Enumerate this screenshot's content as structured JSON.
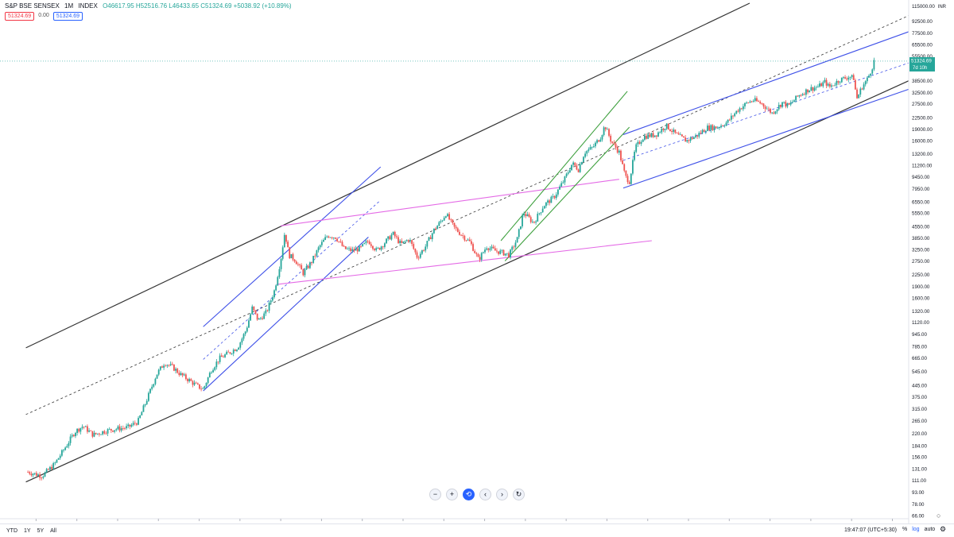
{
  "header": {
    "symbol": "S&P BSE SENSEX",
    "interval": "1M",
    "exchange": "INDEX",
    "ohlc": "O46617.95 H52516.76 L46433.65 C51324.69 +5038.92 (+10.89%)",
    "badge_sell": "51324.69",
    "badge_spread": "0.00",
    "badge_buy": "51324.69"
  },
  "price_axis": {
    "currency": "INR",
    "last_price": "51324.69",
    "countdown": "7d 10h",
    "top_label": "115000.00"
  },
  "chart_data": {
    "type": "candlestick",
    "y_scale": "log",
    "x_ticks": [
      "1980",
      "1982",
      "1984",
      "1986",
      "1988",
      "1990",
      "1992",
      "1994",
      "1996",
      "1998",
      "2000",
      "2002",
      "2004",
      "2006",
      "2008",
      "2010",
      "2012",
      "2014",
      "2016",
      "2018",
      "2020",
      "2022"
    ],
    "y_ticks": [
      "115000.00",
      "92500.00",
      "77500.00",
      "65500.00",
      "55500.00",
      "38500.00",
      "32500.00",
      "27500.00",
      "22500.00",
      "19000.00",
      "16000.00",
      "13200.00",
      "11200.00",
      "9450.00",
      "7950.00",
      "6550.00",
      "5550.00",
      "4550.00",
      "3850.00",
      "3250.00",
      "2750.00",
      "2250.00",
      "1900.00",
      "1600.00",
      "1320.00",
      "1120.00",
      "945.00",
      "785.00",
      "665.00",
      "545.00",
      "445.00",
      "375.00",
      "315.00",
      "265.00",
      "220.00",
      "184.00",
      "156.00",
      "131.00",
      "111.00",
      "93.00",
      "78.00",
      "66.00"
    ],
    "x_range": [
      1979.4,
      2022.8
    ],
    "y_range": [
      63,
      120000
    ],
    "price_path": [
      [
        1979.6,
        125
      ],
      [
        1980.3,
        118
      ],
      [
        1980.9,
        140
      ],
      [
        1981.5,
        185
      ],
      [
        1981.9,
        225
      ],
      [
        1982.3,
        245
      ],
      [
        1982.8,
        215
      ],
      [
        1983.4,
        228
      ],
      [
        1983.9,
        235
      ],
      [
        1984.5,
        240
      ],
      [
        1985.0,
        262
      ],
      [
        1985.5,
        380
      ],
      [
        1985.9,
        520
      ],
      [
        1986.3,
        620
      ],
      [
        1986.7,
        580
      ],
      [
        1987.1,
        520
      ],
      [
        1987.5,
        480
      ],
      [
        1987.9,
        440
      ],
      [
        1988.2,
        420
      ],
      [
        1988.6,
        560
      ],
      [
        1989.0,
        660
      ],
      [
        1989.5,
        720
      ],
      [
        1989.9,
        780
      ],
      [
        1990.3,
        1000
      ],
      [
        1990.6,
        1380
      ],
      [
        1990.9,
        1150
      ],
      [
        1991.3,
        1300
      ],
      [
        1991.7,
        1800
      ],
      [
        1992.0,
        2800
      ],
      [
        1992.2,
        4200
      ],
      [
        1992.4,
        3000
      ],
      [
        1992.7,
        2800
      ],
      [
        1993.1,
        2300
      ],
      [
        1993.5,
        2700
      ],
      [
        1993.9,
        3400
      ],
      [
        1994.3,
        4000
      ],
      [
        1994.7,
        3900
      ],
      [
        1995.1,
        3300
      ],
      [
        1995.5,
        3200
      ],
      [
        1995.9,
        3300
      ],
      [
        1996.3,
        3700
      ],
      [
        1996.7,
        3200
      ],
      [
        1997.1,
        3600
      ],
      [
        1997.5,
        4100
      ],
      [
        1997.9,
        3500
      ],
      [
        1998.3,
        3800
      ],
      [
        1998.7,
        2900
      ],
      [
        1999.1,
        3400
      ],
      [
        1999.5,
        4300
      ],
      [
        1999.9,
        5000
      ],
      [
        2000.1,
        5500
      ],
      [
        2000.5,
        4500
      ],
      [
        2000.9,
        4000
      ],
      [
        2001.3,
        3600
      ],
      [
        2001.7,
        2800
      ],
      [
        2002.1,
        3400
      ],
      [
        2002.5,
        3200
      ],
      [
        2002.9,
        3100
      ],
      [
        2003.2,
        3000
      ],
      [
        2003.6,
        3800
      ],
      [
        2003.9,
        5600
      ],
      [
        2004.4,
        4800
      ],
      [
        2004.9,
        6200
      ],
      [
        2005.4,
        7000
      ],
      [
        2005.9,
        9000
      ],
      [
        2006.3,
        11500
      ],
      [
        2006.6,
        10500
      ],
      [
        2006.9,
        13500
      ],
      [
        2007.3,
        14500
      ],
      [
        2007.7,
        17000
      ],
      [
        2007.9,
        20000
      ],
      [
        2008.2,
        16000
      ],
      [
        2008.6,
        13500
      ],
      [
        2008.9,
        9500
      ],
      [
        2009.1,
        8800
      ],
      [
        2009.4,
        14500
      ],
      [
        2009.8,
        17000
      ],
      [
        2010.4,
        17500
      ],
      [
        2010.9,
        20000
      ],
      [
        2011.4,
        17500
      ],
      [
        2011.9,
        16000
      ],
      [
        2012.4,
        17200
      ],
      [
        2012.9,
        19400
      ],
      [
        2013.4,
        19500
      ],
      [
        2013.9,
        21000
      ],
      [
        2014.4,
        25000
      ],
      [
        2014.9,
        28000
      ],
      [
        2015.2,
        29000
      ],
      [
        2015.6,
        27500
      ],
      [
        2016.1,
        24000
      ],
      [
        2016.6,
        28000
      ],
      [
        2016.9,
        26600
      ],
      [
        2017.4,
        31000
      ],
      [
        2017.9,
        34000
      ],
      [
        2018.4,
        35500
      ],
      [
        2018.7,
        38000
      ],
      [
        2018.9,
        35000
      ],
      [
        2019.4,
        39000
      ],
      [
        2019.9,
        41000
      ],
      [
        2020.1,
        40000
      ],
      [
        2020.25,
        29500
      ],
      [
        2020.5,
        35000
      ],
      [
        2020.8,
        40000
      ],
      [
        2021.0,
        46500
      ],
      [
        2021.1,
        51324.69
      ]
    ]
  },
  "navigation": {
    "zoom_out": "−",
    "zoom_in": "+",
    "reset": "⟲",
    "scroll_left": "‹",
    "scroll_right": "›",
    "refresh": "↻"
  },
  "bottom_bar": {
    "ranges": [
      "YTD",
      "1Y",
      "5Y",
      "All"
    ],
    "clock": "19:47:07 (UTC+5:30)",
    "percent": "%",
    "log": "log",
    "auto": "auto"
  },
  "colors": {
    "up": "#26a69a",
    "down": "#ef5350",
    "black_channel": "#333333",
    "blue_channel": "#3f51e8",
    "pink_channel": "#e46ae6",
    "green_channel": "#3ea03e"
  }
}
